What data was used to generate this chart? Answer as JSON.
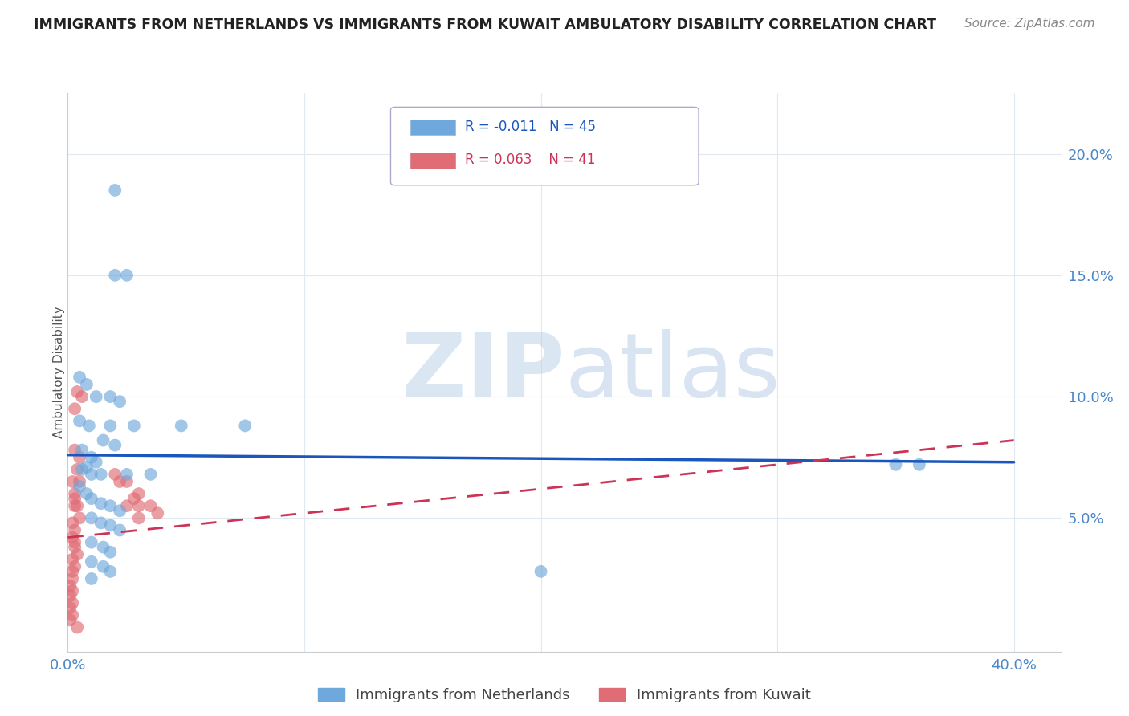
{
  "title": "IMMIGRANTS FROM NETHERLANDS VS IMMIGRANTS FROM KUWAIT AMBULATORY DISABILITY CORRELATION CHART",
  "source": "Source: ZipAtlas.com",
  "ylabel": "Ambulatory Disability",
  "ytick_labels": [
    "5.0%",
    "10.0%",
    "15.0%",
    "20.0%"
  ],
  "ytick_values": [
    0.05,
    0.1,
    0.15,
    0.2
  ],
  "xlim": [
    0.0,
    0.42
  ],
  "ylim": [
    -0.005,
    0.225
  ],
  "legend_blue_r": "R = -0.011",
  "legend_blue_n": "N = 45",
  "legend_pink_r": "R = 0.063",
  "legend_pink_n": "N = 41",
  "blue_color": "#6fa8dc",
  "pink_color": "#e06c75",
  "blue_scatter": [
    [
      0.02,
      0.185
    ],
    [
      0.02,
      0.15
    ],
    [
      0.025,
      0.15
    ],
    [
      0.005,
      0.108
    ],
    [
      0.008,
      0.105
    ],
    [
      0.012,
      0.1
    ],
    [
      0.018,
      0.1
    ],
    [
      0.022,
      0.098
    ],
    [
      0.005,
      0.09
    ],
    [
      0.009,
      0.088
    ],
    [
      0.018,
      0.088
    ],
    [
      0.028,
      0.088
    ],
    [
      0.048,
      0.088
    ],
    [
      0.075,
      0.088
    ],
    [
      0.015,
      0.082
    ],
    [
      0.02,
      0.08
    ],
    [
      0.006,
      0.078
    ],
    [
      0.01,
      0.075
    ],
    [
      0.012,
      0.073
    ],
    [
      0.008,
      0.071
    ],
    [
      0.006,
      0.07
    ],
    [
      0.01,
      0.068
    ],
    [
      0.014,
      0.068
    ],
    [
      0.025,
      0.068
    ],
    [
      0.035,
      0.068
    ],
    [
      0.005,
      0.063
    ],
    [
      0.008,
      0.06
    ],
    [
      0.01,
      0.058
    ],
    [
      0.014,
      0.056
    ],
    [
      0.018,
      0.055
    ],
    [
      0.022,
      0.053
    ],
    [
      0.01,
      0.05
    ],
    [
      0.014,
      0.048
    ],
    [
      0.018,
      0.047
    ],
    [
      0.022,
      0.045
    ],
    [
      0.01,
      0.04
    ],
    [
      0.015,
      0.038
    ],
    [
      0.018,
      0.036
    ],
    [
      0.01,
      0.032
    ],
    [
      0.015,
      0.03
    ],
    [
      0.018,
      0.028
    ],
    [
      0.01,
      0.025
    ],
    [
      0.2,
      0.028
    ],
    [
      0.36,
      0.072
    ],
    [
      0.35,
      0.072
    ]
  ],
  "pink_scatter": [
    [
      0.004,
      0.102
    ],
    [
      0.006,
      0.1
    ],
    [
      0.003,
      0.095
    ],
    [
      0.02,
      0.068
    ],
    [
      0.025,
      0.065
    ],
    [
      0.003,
      0.078
    ],
    [
      0.005,
      0.075
    ],
    [
      0.004,
      0.07
    ],
    [
      0.002,
      0.065
    ],
    [
      0.003,
      0.06
    ],
    [
      0.003,
      0.058
    ],
    [
      0.004,
      0.055
    ],
    [
      0.005,
      0.05
    ],
    [
      0.002,
      0.048
    ],
    [
      0.003,
      0.045
    ],
    [
      0.002,
      0.042
    ],
    [
      0.003,
      0.04
    ],
    [
      0.003,
      0.038
    ],
    [
      0.004,
      0.035
    ],
    [
      0.002,
      0.033
    ],
    [
      0.003,
      0.03
    ],
    [
      0.002,
      0.028
    ],
    [
      0.002,
      0.025
    ],
    [
      0.001,
      0.022
    ],
    [
      0.002,
      0.02
    ],
    [
      0.001,
      0.018
    ],
    [
      0.002,
      0.015
    ],
    [
      0.001,
      0.013
    ],
    [
      0.002,
      0.01
    ],
    [
      0.001,
      0.008
    ],
    [
      0.022,
      0.065
    ],
    [
      0.03,
      0.06
    ],
    [
      0.028,
      0.058
    ],
    [
      0.035,
      0.055
    ],
    [
      0.038,
      0.052
    ],
    [
      0.025,
      0.055
    ],
    [
      0.03,
      0.05
    ],
    [
      0.004,
      0.005
    ],
    [
      0.003,
      0.055
    ],
    [
      0.005,
      0.065
    ],
    [
      0.03,
      0.055
    ]
  ],
  "blue_trend_x": [
    0.0,
    0.4
  ],
  "blue_trend_y": [
    0.076,
    0.073
  ],
  "pink_trend_x": [
    0.0,
    0.4
  ],
  "pink_trend_y": [
    0.042,
    0.082
  ],
  "watermark_zip": "ZIP",
  "watermark_atlas": "atlas",
  "background_color": "#ffffff",
  "grid_color": "#e0e8f0",
  "title_color": "#222222",
  "tick_color": "#4a86c8",
  "ylabel_color": "#555555"
}
